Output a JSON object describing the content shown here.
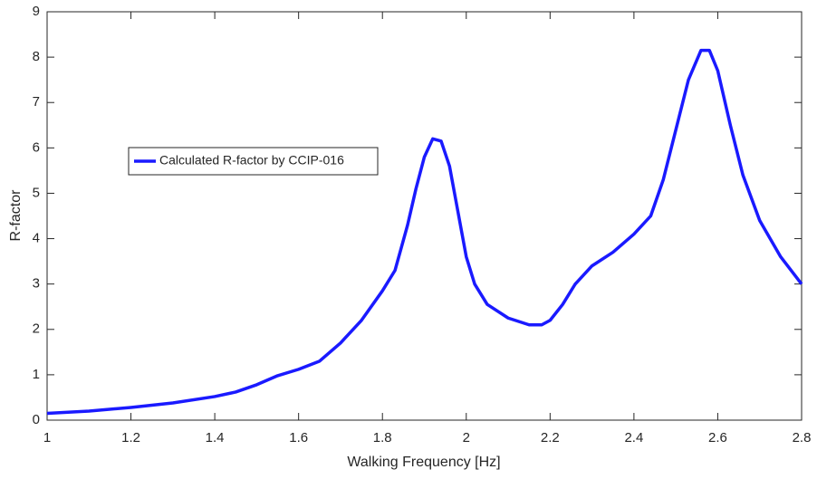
{
  "chart_data": {
    "type": "line",
    "xlabel": "Walking Frequency [Hz]",
    "ylabel": "R-factor",
    "x": [
      1.0,
      1.1,
      1.2,
      1.3,
      1.4,
      1.45,
      1.5,
      1.55,
      1.6,
      1.65,
      1.7,
      1.75,
      1.8,
      1.83,
      1.86,
      1.88,
      1.9,
      1.92,
      1.94,
      1.96,
      1.98,
      2.0,
      2.02,
      2.05,
      2.1,
      2.15,
      2.18,
      2.2,
      2.23,
      2.26,
      2.3,
      2.35,
      2.4,
      2.44,
      2.47,
      2.5,
      2.53,
      2.56,
      2.58,
      2.6,
      2.63,
      2.66,
      2.7,
      2.75,
      2.8
    ],
    "series": [
      {
        "name": "Calculated R-factor by CCIP-016",
        "color": "#1a1aff",
        "values": [
          0.15,
          0.2,
          0.28,
          0.38,
          0.52,
          0.62,
          0.78,
          0.98,
          1.12,
          1.3,
          1.7,
          2.2,
          2.85,
          3.3,
          4.3,
          5.1,
          5.8,
          6.2,
          6.15,
          5.6,
          4.6,
          3.6,
          3.0,
          2.55,
          2.25,
          2.1,
          2.1,
          2.2,
          2.55,
          3.0,
          3.4,
          3.7,
          4.1,
          4.5,
          5.3,
          6.4,
          7.5,
          8.15,
          8.15,
          7.7,
          6.5,
          5.4,
          4.4,
          3.6,
          3.0
        ]
      }
    ],
    "xlim": [
      1,
      2.8
    ],
    "xticks": [
      1,
      1.2,
      1.4,
      1.6,
      1.8,
      2,
      2.2,
      2.4,
      2.6,
      2.8
    ],
    "ylim": [
      0,
      9
    ],
    "yticks": [
      0,
      1,
      2,
      3,
      4,
      5,
      6,
      7,
      8,
      9
    ],
    "grid": false,
    "legend": "upper left"
  }
}
